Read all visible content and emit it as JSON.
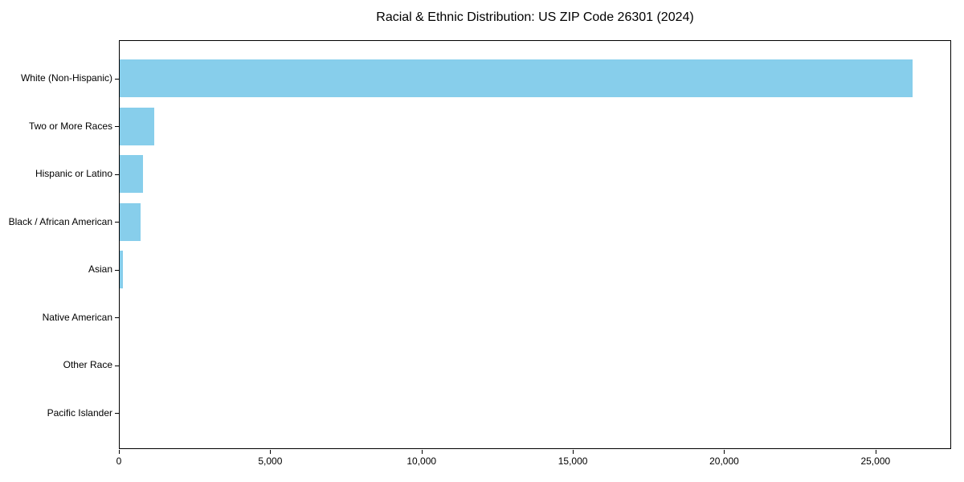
{
  "chart_data": {
    "type": "bar",
    "orientation": "horizontal",
    "title": "Racial & Ethnic Distribution: US ZIP Code 26301 (2024)",
    "categories": [
      "White (Non-Hispanic)",
      "Two or More Races",
      "Hispanic or Latino",
      "Black / African American",
      "Asian",
      "Native American",
      "Other Race",
      "Pacific Islander"
    ],
    "values": [
      26200,
      1150,
      760,
      680,
      110,
      25,
      15,
      5
    ],
    "xlabel": "",
    "ylabel": "",
    "xlim": [
      0,
      27500
    ],
    "xticks": [
      0,
      5000,
      10000,
      15000,
      20000,
      25000
    ],
    "xtick_labels": [
      "0",
      "5,000",
      "10,000",
      "15,000",
      "20,000",
      "25,000"
    ],
    "bar_color": "#87CEEB",
    "text_color": "#000000",
    "frame_color": "#000000",
    "grid": false,
    "legend": "none",
    "background": "#ffffff"
  }
}
